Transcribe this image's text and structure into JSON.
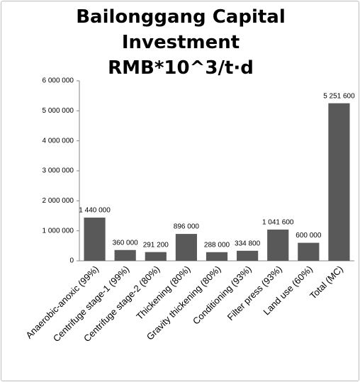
{
  "chart_data": {
    "type": "bar",
    "title": "Bailonggang Capital Investment RMB*10^3/t·d",
    "categories": [
      "Anaerobic-anoxic (99%)",
      "Centrifuge stage-1 (99%)",
      "Centrifuge stage-2 (80%)",
      "Thickening (80%)",
      "Gravity thickening (80%)",
      "Conditioning (93%)",
      "Filter press (93%)",
      "Land use (60%)",
      "Total (MC)"
    ],
    "values": [
      1440000,
      360000,
      291200,
      896000,
      288000,
      334800,
      1041600,
      600000,
      5251600
    ],
    "value_labels": [
      "1 440 000",
      "360 000",
      "291 200",
      "896 000",
      "288 000",
      "334 800",
      "1 041 600",
      "600 000",
      "5 251 600"
    ],
    "color": "#595959",
    "ylim": [
      0,
      6000000
    ],
    "yticks": [
      0,
      {
        "value": 1000000,
        "label": "1 000 000"
      },
      {
        "value": 2000000,
        "label": "2 000 000"
      },
      {
        "value": 3000000,
        "label": "3 000 000"
      },
      {
        "value": 4000000,
        "label": "4 000 000"
      },
      {
        "value": 5000000,
        "label": "5 000 000"
      },
      {
        "value": 6000000,
        "label": "6 000 000"
      }
    ],
    "grid": false
  }
}
